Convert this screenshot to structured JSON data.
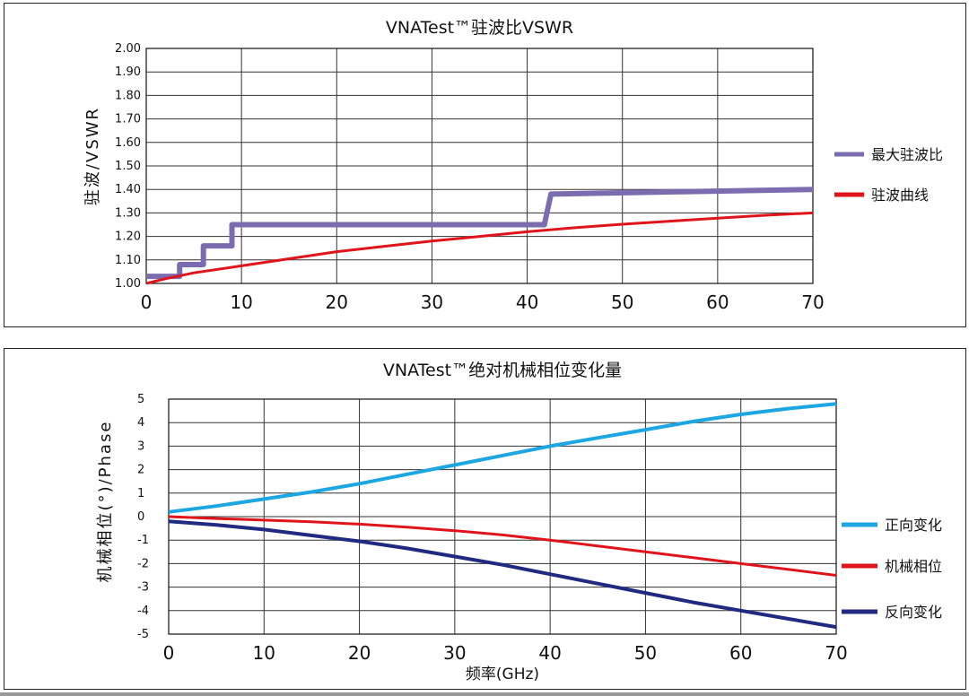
{
  "chart_data": [
    {
      "type": "line",
      "title": "VNATest™驻波比VSWR",
      "xlabel": "",
      "ylabel": "驻波/VSWR",
      "xlim": [
        0,
        70
      ],
      "ylim": [
        1.0,
        2.0
      ],
      "x_ticks": [
        0,
        10,
        20,
        30,
        40,
        50,
        60,
        70
      ],
      "x_tick_labels": [
        "0",
        "10",
        "20",
        "30",
        "40",
        "50",
        "60",
        "70"
      ],
      "y_ticks": [
        1.0,
        1.1,
        1.2,
        1.3,
        1.4,
        1.5,
        1.6,
        1.7,
        1.8,
        1.9,
        2.0
      ],
      "y_tick_labels": [
        "1.00",
        "1.10",
        "1.20",
        "1.30",
        "1.40",
        "1.50",
        "1.60",
        "1.70",
        "1.80",
        "1.90",
        "2.00"
      ],
      "grid": true,
      "legend_position": "right",
      "series": [
        {
          "name": "最大驻波比",
          "color": "#7b6cb0",
          "width": 6,
          "x": [
            0,
            3.5,
            3.5,
            6,
            6,
            9,
            9,
            41.8,
            42.5,
            56,
            70
          ],
          "y": [
            1.03,
            1.03,
            1.08,
            1.08,
            1.16,
            1.16,
            1.25,
            1.25,
            1.38,
            1.39,
            1.4
          ]
        },
        {
          "name": "驻波曲线",
          "color": "#e0141b",
          "width": 3,
          "x": [
            0,
            2,
            5,
            10,
            15,
            20,
            25,
            30,
            35,
            40,
            45,
            50,
            55,
            60,
            65,
            70
          ],
          "y": [
            1.0,
            1.02,
            1.045,
            1.075,
            1.105,
            1.135,
            1.158,
            1.18,
            1.2,
            1.22,
            1.237,
            1.252,
            1.265,
            1.278,
            1.29,
            1.3
          ]
        }
      ]
    },
    {
      "type": "line",
      "title": "VNATest™绝对机械相位变化量",
      "xlabel": "频率(GHz)",
      "ylabel": "机械相位(°)/Phase",
      "xlim": [
        0,
        70
      ],
      "ylim": [
        -5,
        5
      ],
      "x_ticks": [
        0,
        10,
        20,
        30,
        40,
        50,
        60,
        70
      ],
      "x_tick_labels": [
        "0",
        "10",
        "20",
        "30",
        "40",
        "50",
        "60",
        "70"
      ],
      "y_ticks": [
        5,
        4,
        3,
        2,
        1,
        0,
        -1,
        -2,
        -3,
        -4,
        -5
      ],
      "y_tick_labels": [
        "5",
        "4",
        "3",
        "2",
        "1",
        "0",
        "-1",
        "-2",
        "-3",
        "-4",
        "-5"
      ],
      "grid": true,
      "legend_position": "right",
      "series": [
        {
          "name": "正向变化",
          "color": "#1ca6e2",
          "width": 4,
          "x": [
            0,
            5,
            10,
            15,
            20,
            25,
            30,
            35,
            40,
            45,
            50,
            55,
            60,
            65,
            70
          ],
          "y": [
            0.2,
            0.45,
            0.75,
            1.05,
            1.4,
            1.8,
            2.2,
            2.6,
            3.0,
            3.35,
            3.7,
            4.05,
            4.35,
            4.6,
            4.8
          ]
        },
        {
          "name": "机械相位",
          "color": "#e0141b",
          "width": 3,
          "x": [
            0,
            5,
            10,
            15,
            20,
            25,
            30,
            35,
            40,
            45,
            50,
            55,
            60,
            65,
            70
          ],
          "y": [
            0.0,
            -0.08,
            -0.15,
            -0.22,
            -0.32,
            -0.45,
            -0.6,
            -0.78,
            -1.0,
            -1.25,
            -1.5,
            -1.75,
            -2.0,
            -2.25,
            -2.5
          ]
        },
        {
          "name": "反向变化",
          "color": "#1f2a80",
          "width": 4,
          "x": [
            0,
            5,
            10,
            15,
            20,
            25,
            30,
            35,
            40,
            45,
            50,
            55,
            60,
            65,
            70
          ],
          "y": [
            -0.2,
            -0.35,
            -0.55,
            -0.8,
            -1.05,
            -1.35,
            -1.7,
            -2.05,
            -2.45,
            -2.85,
            -3.25,
            -3.65,
            -4.0,
            -4.35,
            -4.7
          ]
        }
      ]
    }
  ]
}
